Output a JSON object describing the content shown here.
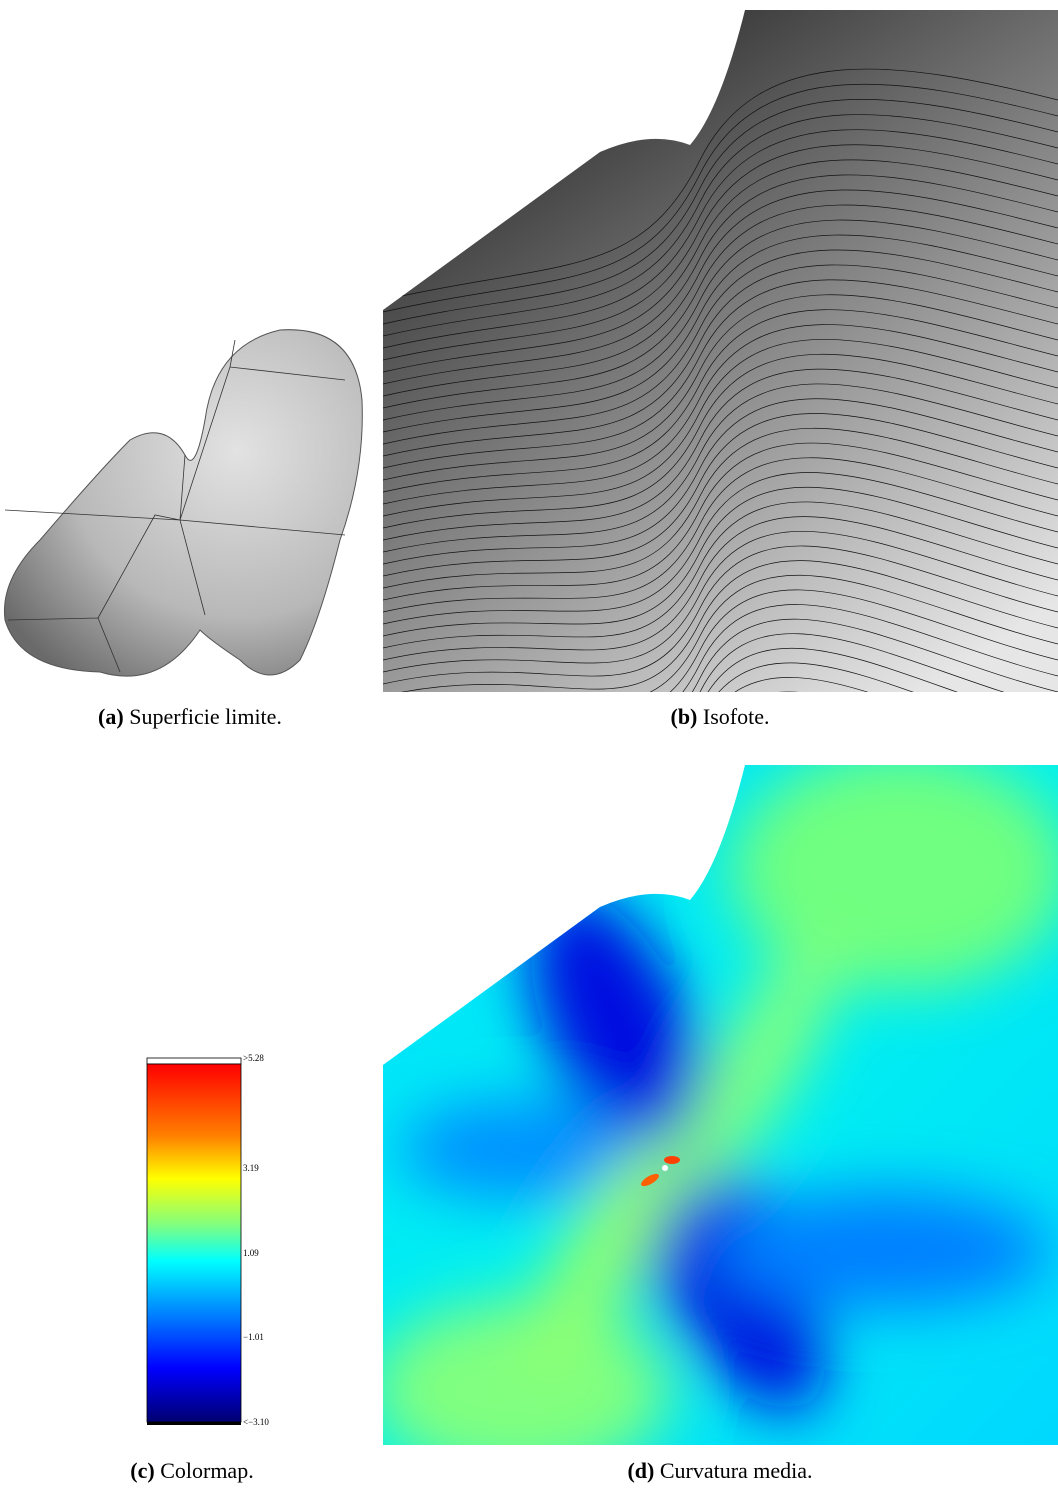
{
  "figure": {
    "panels": [
      {
        "label": "(a)",
        "caption": "Superficie limite."
      },
      {
        "label": "(b)",
        "caption": "Isofote."
      },
      {
        "label": "(c)",
        "caption": "Colormap."
      },
      {
        "label": "(d)",
        "caption": "Curvatura media."
      }
    ],
    "colorbar": {
      "labels": [
        ">5.28",
        "3.19",
        "1.09",
        "−1.01",
        "<−3.10"
      ]
    }
  }
}
